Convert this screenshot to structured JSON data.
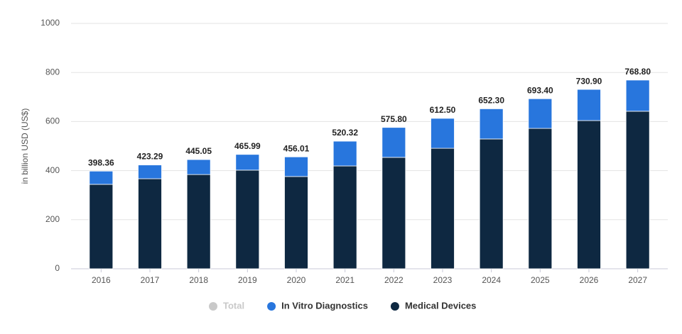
{
  "chart_data": {
    "type": "stacked_bar",
    "y_label": "in billion USD (US$)",
    "categories": [
      "2016",
      "2017",
      "2018",
      "2019",
      "2020",
      "2021",
      "2022",
      "2023",
      "2024",
      "2025",
      "2026",
      "2027"
    ],
    "series": [
      {
        "name": "Total",
        "color": "#c9c9c9",
        "visible": false,
        "values": [
          398.36,
          423.29,
          445.05,
          465.99,
          456.01,
          520.32,
          575.8,
          612.5,
          652.3,
          693.4,
          730.9,
          768.8
        ],
        "value_labels": [
          "398.36",
          "423.29",
          "445.05",
          "465.99",
          "456.01",
          "520.32",
          "575.80",
          "612.50",
          "652.30",
          "693.40",
          "730.90",
          "768.80"
        ]
      },
      {
        "name": "In Vitro Diagnostics",
        "color": "#2876dd",
        "visible": true,
        "values": [
          54,
          56,
          61,
          64,
          80,
          101,
          122,
          122,
          123,
          121,
          127,
          127
        ]
      },
      {
        "name": "Medical Devices",
        "color": "#0e2841",
        "visible": true,
        "values": [
          344,
          367,
          384,
          402,
          376,
          419,
          454,
          491,
          529,
          572,
          604,
          642
        ]
      }
    ],
    "stack_order": [
      2,
      1
    ],
    "ylim": [
      0,
      1000
    ],
    "yticks": [
      0,
      200,
      400,
      600,
      800,
      1000
    ],
    "grid": true
  }
}
